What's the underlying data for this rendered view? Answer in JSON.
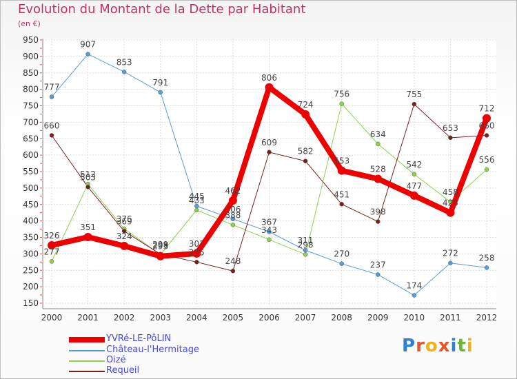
{
  "title": "Evolution du Montant de la Dette par Habitant",
  "subtitle": "(en €)",
  "logo": {
    "letters": [
      "P",
      "r",
      "o",
      "x",
      "i",
      "t",
      "i"
    ],
    "colors": [
      "#2e7fd6",
      "#e8532b",
      "#f2b01e",
      "#e8532b",
      "#2e7fd6",
      "#6bb33d",
      "#f2b01e"
    ]
  },
  "chart_data": {
    "type": "line",
    "x": [
      "2000",
      "2001",
      "2002",
      "2003",
      "2004",
      "2005",
      "2006",
      "2007",
      "2008",
      "2009",
      "2010",
      "2011",
      "2012"
    ],
    "yticks": [
      150,
      200,
      250,
      300,
      350,
      400,
      450,
      500,
      550,
      600,
      650,
      700,
      750,
      800,
      850,
      900,
      950
    ],
    "ylim": [
      150,
      950
    ],
    "grid": true,
    "legend_position": "bottom-left",
    "series": [
      {
        "name": "Château-l'Hermitage",
        "color": "#5b9bd5",
        "width": 1,
        "values": [
          777,
          907,
          853,
          791,
          445,
          406,
          367,
          311,
          270,
          237,
          174,
          272,
          258
        ]
      },
      {
        "name": "Oizé",
        "color": "#8fd14f",
        "width": 1,
        "values": [
          277,
          512,
          376,
          298,
          433,
          388,
          343,
          298,
          756,
          634,
          542,
          458,
          556
        ]
      },
      {
        "name": "Requeil",
        "color": "#7a1f1f",
        "width": 1,
        "values": [
          660,
          503,
          369,
          299,
          275,
          248,
          609,
          582,
          451,
          398,
          755,
          653,
          660
        ]
      },
      {
        "name": "YVRé-LE-PôLIN",
        "color": "#ee0000",
        "width": 8,
        "values": [
          326,
          351,
          324,
          293,
          301,
          462,
          806,
          724,
          553,
          528,
          477,
          425,
          712
        ]
      }
    ],
    "legend_order": [
      "YVRé-LE-PôLIN",
      "Château-l'Hermitage",
      "Oizé",
      "Requeil"
    ]
  }
}
